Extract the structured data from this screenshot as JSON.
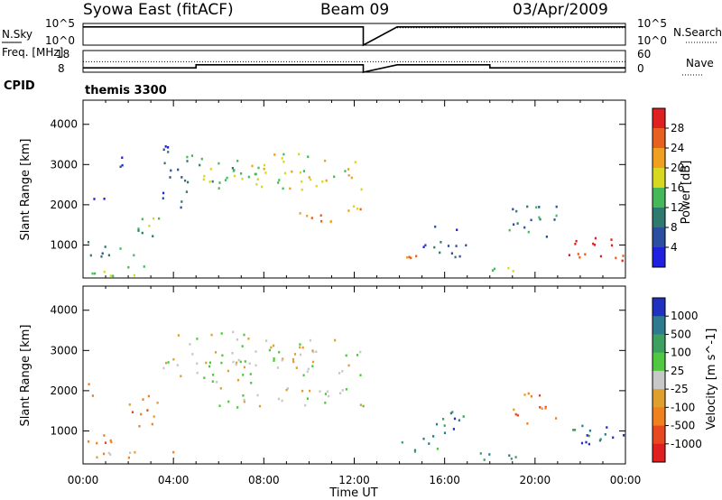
{
  "header": {
    "station": "Syowa East (fitACF)",
    "beam": "Beam 09",
    "date": "03/Apr/2009"
  },
  "chart_data": [
    {
      "panel": "N.Sky / N.Search",
      "type": "line",
      "left_label": "N.Sky",
      "right_label": "N.Search",
      "left_ticks": [
        "10^5",
        "10^0"
      ],
      "right_ticks": [
        "10^5",
        "10^0"
      ],
      "series": [
        {
          "name": "N.Sky",
          "style": "solid",
          "x": [
            0,
            12.4,
            12.4,
            13.9,
            24
          ],
          "y": [
            4.2,
            4.2,
            0,
            4.2,
            4.2
          ]
        },
        {
          "name": "N.Search",
          "style": "dotted",
          "x": [
            13.9,
            24
          ],
          "y": [
            4.0,
            4.0
          ]
        }
      ]
    },
    {
      "panel": "Freq. / Nave",
      "type": "line",
      "left_label": "Freq. [MHz]",
      "right_label": "Nave",
      "left_ticks": [
        "18",
        "8"
      ],
      "right_ticks": [
        "60",
        "0"
      ],
      "series": [
        {
          "name": "Freq.",
          "style": "solid",
          "x": [
            0,
            5,
            5,
            12.4,
            12.4,
            13.9,
            18,
            18,
            24
          ],
          "y": [
            10,
            10,
            11.4,
            11.4,
            8,
            11.4,
            11.4,
            10,
            10
          ]
        },
        {
          "name": "Nave",
          "style": "dotted",
          "x": [
            0,
            24
          ],
          "y": [
            29,
            29
          ]
        }
      ]
    },
    {
      "panel": "CPID",
      "type": "text",
      "label": "CPID",
      "value": "themis 3300"
    },
    {
      "panel": "Power",
      "type": "heatmap",
      "ylabel": "Slant Range [km]",
      "yticks": [
        1000,
        2000,
        3000,
        4000
      ],
      "ylim": [
        180,
        4600
      ],
      "colorbar": {
        "label": "Power [dB]",
        "ticks": [
          "4",
          "8",
          "12",
          "16",
          "20",
          "24",
          "28"
        ],
        "colors": [
          "#2020e0",
          "#2a4fa0",
          "#2e7a6e",
          "#46b85a",
          "#d8d820",
          "#f0a020",
          "#e86020",
          "#e02020"
        ]
      },
      "blobs": [
        {
          "t": [
            0.1,
            1.0
          ],
          "r": [
            1900,
            2200
          ],
          "c": 0
        },
        {
          "t": [
            1.5,
            2.0
          ],
          "r": [
            2900,
            3500
          ],
          "c": 0
        },
        {
          "t": [
            0.1,
            2.5
          ],
          "r": [
            700,
            1100
          ],
          "c": 2
        },
        {
          "t": [
            2.0,
            3.5
          ],
          "r": [
            1200,
            1800
          ],
          "c": 3
        },
        {
          "t": [
            3.5,
            4.5
          ],
          "r": [
            1800,
            3500
          ],
          "c": 1
        },
        {
          "t": [
            4.5,
            7.0
          ],
          "r": [
            2200,
            3300
          ],
          "c": 3
        },
        {
          "t": [
            7.0,
            12.4
          ],
          "r": [
            2400,
            3300
          ],
          "c": 4
        },
        {
          "t": [
            9.0,
            12.4
          ],
          "r": [
            1600,
            2000
          ],
          "c": 5
        },
        {
          "t": [
            0.1,
            4.0
          ],
          "r": [
            250,
            500
          ],
          "c": 4
        },
        {
          "t": [
            14.0,
            15.5
          ],
          "r": [
            500,
            800
          ],
          "c": 6
        },
        {
          "t": [
            15.0,
            17.0
          ],
          "r": [
            700,
            1500
          ],
          "c": 1
        },
        {
          "t": [
            17.5,
            19.5
          ],
          "r": [
            250,
            500
          ],
          "c": 4
        },
        {
          "t": [
            18.5,
            21.0
          ],
          "r": [
            1200,
            2000
          ],
          "c": 2
        },
        {
          "t": [
            21.0,
            24.0
          ],
          "r": [
            600,
            1200
          ],
          "c": 7
        }
      ]
    },
    {
      "panel": "Velocity",
      "type": "heatmap",
      "xlabel": "Time UT",
      "ylabel": "Slant Range [km]",
      "xticks": [
        "00:00",
        "04:00",
        "08:00",
        "12:00",
        "16:00",
        "20:00",
        "00:00"
      ],
      "yticks": [
        1000,
        2000,
        3000,
        4000
      ],
      "ylim": [
        180,
        4600
      ],
      "colorbar": {
        "label": "Velocity [m s^-1]",
        "ticks": [
          "1000",
          "500",
          "100",
          "25",
          "-25",
          "-100",
          "-500",
          "-1000"
        ],
        "colors": [
          "#2030c0",
          "#2e7a8e",
          "#3ea060",
          "#50c840",
          "#c8c8c8",
          "#e0a030",
          "#f08020",
          "#e84820",
          "#e02020"
        ]
      },
      "blobs": [
        {
          "t": [
            0.1,
            1.0
          ],
          "r": [
            1900,
            2200
          ],
          "c": 6
        },
        {
          "t": [
            0.1,
            2.0
          ],
          "r": [
            700,
            1100
          ],
          "c": 6
        },
        {
          "t": [
            2.0,
            3.5
          ],
          "r": [
            1100,
            1900
          ],
          "c": 6
        },
        {
          "t": [
            3.5,
            7.5
          ],
          "r": [
            2200,
            3500
          ],
          "c": 4
        },
        {
          "t": [
            7.5,
            12.4
          ],
          "r": [
            2400,
            3300
          ],
          "c": 4
        },
        {
          "t": [
            6.0,
            12.4
          ],
          "r": [
            1600,
            2100
          ],
          "c": 4
        },
        {
          "t": [
            0.1,
            4.0
          ],
          "r": [
            250,
            500
          ],
          "c": 5
        },
        {
          "t": [
            14.0,
            16.0
          ],
          "r": [
            500,
            800
          ],
          "c": 2
        },
        {
          "t": [
            15.0,
            17.0
          ],
          "r": [
            800,
            1500
          ],
          "c": 1
        },
        {
          "t": [
            17.5,
            20.5
          ],
          "r": [
            250,
            500
          ],
          "c": 2
        },
        {
          "t": [
            19.0,
            21.0
          ],
          "r": [
            1200,
            2000
          ],
          "c": 6
        },
        {
          "t": [
            21.0,
            24.0
          ],
          "r": [
            600,
            1200
          ],
          "c": 1
        }
      ]
    }
  ]
}
